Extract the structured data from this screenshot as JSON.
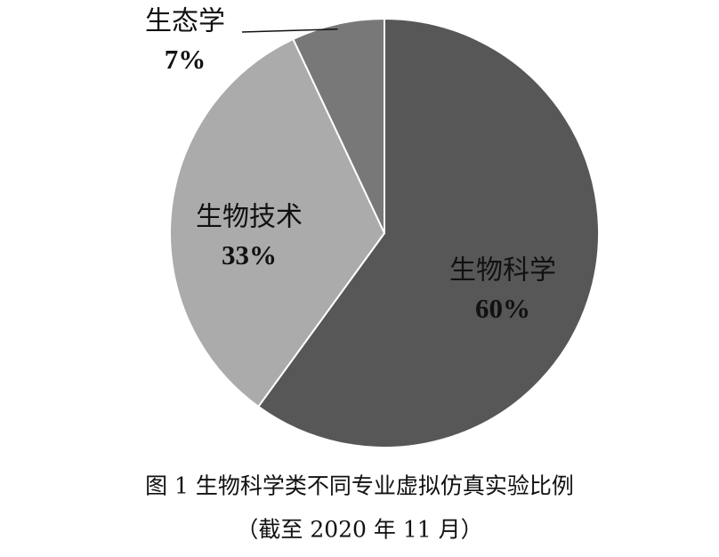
{
  "chart_data": {
    "type": "pie",
    "categories": [
      "生物科学",
      "生物技术",
      "生态学"
    ],
    "values": [
      60,
      33,
      7
    ],
    "value_labels": [
      "60%",
      "33%",
      "7%"
    ],
    "colors": [
      "#575757",
      "#ababab",
      "#787878"
    ],
    "caption": "图 1 生物科学类不同专业虚拟仿真实验比例",
    "subcaption": "（截至 2020 年 11 月）"
  }
}
